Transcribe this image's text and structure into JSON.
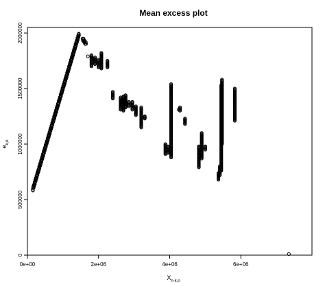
{
  "chart_data": {
    "type": "scatter",
    "title": "Mean excess plot",
    "xlabel": "X",
    "xlabel_sub": "n-k,n",
    "ylabel": "e",
    "ylabel_sub": "k,n",
    "xlim": [
      0,
      8000000
    ],
    "ylim": [
      0,
      2050000
    ],
    "x_ticks": [
      0,
      2000000,
      4000000,
      6000000
    ],
    "x_tick_labels": [
      "0e+00",
      "2e+06",
      "4e+06",
      "6e+06"
    ],
    "y_ticks": [
      0,
      500000,
      1000000,
      1500000,
      2000000
    ],
    "y_tick_labels": [
      "0",
      "500000",
      "1000000",
      "1500000",
      "2000000"
    ],
    "grid": false,
    "legend": "none",
    "marker": "open circle",
    "dense_runs": [
      {
        "x": [
          150000,
          1450000
        ],
        "y": [
          590000,
          1990000
        ]
      },
      {
        "x": [
          1550000,
          1650000
        ],
        "y": [
          1950000,
          1900000
        ]
      }
    ],
    "vertical_runs": [
      {
        "x": 1800000,
        "y": [
          1700000,
          1800000
        ]
      },
      {
        "x": 1900000,
        "y": [
          1720000,
          1780000
        ]
      },
      {
        "x": 2000000,
        "y": [
          1690000,
          1760000
        ]
      },
      {
        "x": 2080000,
        "y": [
          1680000,
          1820000
        ]
      },
      {
        "x": 2250000,
        "y": [
          1690000,
          1750000
        ]
      },
      {
        "x": 2400000,
        "y": [
          1410000,
          1470000
        ]
      },
      {
        "x": 2620000,
        "y": [
          1310000,
          1420000
        ]
      },
      {
        "x": 2700000,
        "y": [
          1300000,
          1430000
        ]
      },
      {
        "x": 2760000,
        "y": [
          1330000,
          1440000
        ]
      },
      {
        "x": 2850000,
        "y": [
          1340000,
          1380000
        ]
      },
      {
        "x": 2950000,
        "y": [
          1310000,
          1380000
        ]
      },
      {
        "x": 3050000,
        "y": [
          1260000,
          1340000
        ]
      },
      {
        "x": 3200000,
        "y": [
          1150000,
          1330000
        ]
      },
      {
        "x": 3300000,
        "y": [
          1230000,
          1250000
        ]
      },
      {
        "x": 3880000,
        "y": [
          910000,
          1000000
        ]
      },
      {
        "x": 3950000,
        "y": [
          920000,
          980000
        ]
      },
      {
        "x": 4040000,
        "y": [
          880000,
          1540000
        ]
      },
      {
        "x": 4290000,
        "y": [
          1300000,
          1330000
        ]
      },
      {
        "x": 4430000,
        "y": [
          1180000,
          1230000
        ]
      },
      {
        "x": 4820000,
        "y": [
          790000,
          980000
        ]
      },
      {
        "x": 4900000,
        "y": [
          870000,
          1100000
        ]
      },
      {
        "x": 5000000,
        "y": [
          950000,
          980000
        ]
      },
      {
        "x": 5370000,
        "y": [
          680000,
          740000
        ]
      },
      {
        "x": 5410000,
        "y": [
          720000,
          800000
        ]
      },
      {
        "x": 5450000,
        "y": [
          760000,
          1530000
        ]
      },
      {
        "x": 5470000,
        "y": [
          1000000,
          1580000
        ]
      },
      {
        "x": 5830000,
        "y": [
          1210000,
          1500000
        ]
      }
    ],
    "points": [
      {
        "x": 1700000,
        "y": 1790000
      },
      {
        "x": 4250000,
        "y": 1310000
      },
      {
        "x": 7350000,
        "y": 10000
      }
    ]
  }
}
